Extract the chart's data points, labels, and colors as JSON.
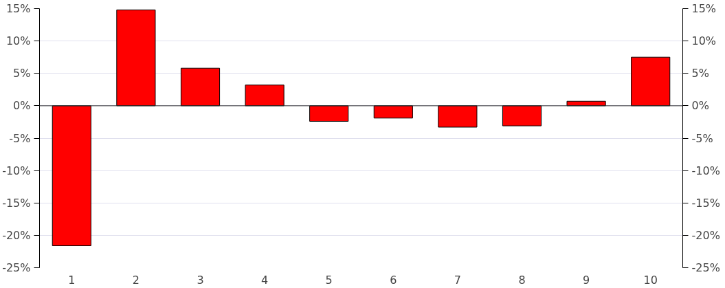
{
  "chart_data": {
    "type": "bar",
    "categories": [
      "1",
      "2",
      "3",
      "4",
      "5",
      "6",
      "7",
      "8",
      "9",
      "10"
    ],
    "series": [
      {
        "color": "#ff0000",
        "values": [
          -21.6,
          14.8,
          5.8,
          3.2,
          -2.4,
          -1.9,
          -3.3,
          -3.1,
          0.7,
          7.5
        ]
      }
    ],
    "ylim": [
      -25,
      15
    ],
    "yticks": [
      {
        "value": -25,
        "label": "-25%"
      },
      {
        "value": -20,
        "label": "-20%"
      },
      {
        "value": -15,
        "label": "-15%"
      },
      {
        "value": -10,
        "label": "-10%"
      },
      {
        "value": -5,
        "label": "-5%"
      },
      {
        "value": 0,
        "label": "0%"
      },
      {
        "value": 5,
        "label": "5%"
      },
      {
        "value": 10,
        "label": "10%"
      },
      {
        "value": 15,
        "label": "15%"
      }
    ],
    "y2lim": [
      -25,
      15
    ],
    "y2ticks": [
      {
        "value": -25,
        "label": "-25%"
      },
      {
        "value": -20,
        "label": "-20%"
      },
      {
        "value": -15,
        "label": "-15%"
      },
      {
        "value": -10,
        "label": "-10%"
      },
      {
        "value": -5,
        "label": "-5%"
      },
      {
        "value": 0,
        "label": "0%"
      },
      {
        "value": 5,
        "label": "5%"
      },
      {
        "value": 10,
        "label": "10%"
      },
      {
        "value": 15,
        "label": "15%"
      }
    ],
    "grid": "y"
  }
}
